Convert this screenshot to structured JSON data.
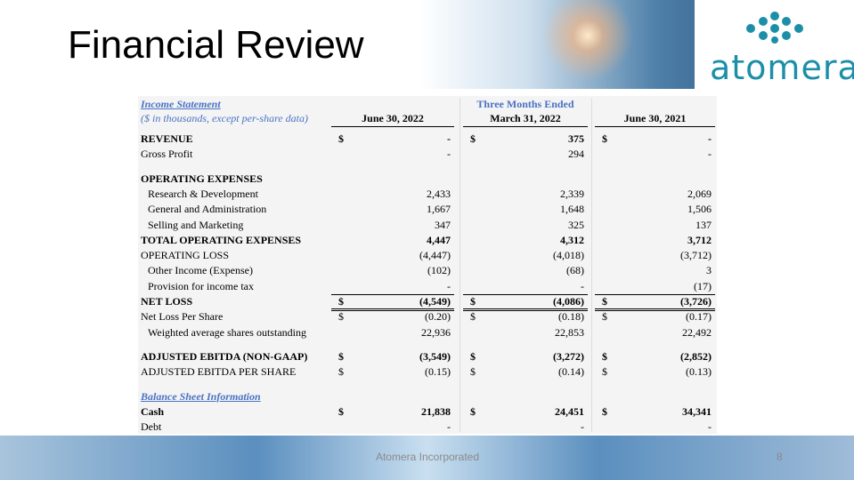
{
  "header": {
    "title": "Financial Review",
    "logo": "atomera"
  },
  "table": {
    "section_title": "Income Statement",
    "group_header": "Three Months Ended",
    "subtitle": "($ in thousands, except per-share data)",
    "columns": [
      "June 30, 2022",
      "March 31, 2022",
      "June 30, 2021"
    ],
    "rows": [
      {
        "label": "REVENUE",
        "bold": true,
        "currency": "$",
        "cells": [
          "-",
          "375",
          "-"
        ]
      },
      {
        "label": "Gross Profit",
        "cells": [
          "-",
          "294",
          "-"
        ]
      },
      {
        "label": "OPERATING EXPENSES",
        "bold": true,
        "spaced": true
      },
      {
        "label": "Research & Development",
        "indent": true,
        "cells": [
          "2,433",
          "2,339",
          "2,069"
        ]
      },
      {
        "label": "General and Administration",
        "indent": true,
        "cells": [
          "1,667",
          "1,648",
          "1,506"
        ]
      },
      {
        "label": "Selling and Marketing",
        "indent": true,
        "cells": [
          "347",
          "325",
          "137"
        ]
      },
      {
        "label": "TOTAL OPERATING EXPENSES",
        "bold": true,
        "cells": [
          "4,447",
          "4,312",
          "3,712"
        ]
      },
      {
        "label": "OPERATING LOSS",
        "cells": [
          "(4,447)",
          "(4,018)",
          "(3,712)"
        ]
      },
      {
        "label": "Other Income (Expense)",
        "indent": true,
        "cells": [
          "(102)",
          "(68)",
          "3"
        ]
      },
      {
        "label": "Provision for income tax",
        "indent": true,
        "cells": [
          "-",
          "-",
          "(17)"
        ]
      },
      {
        "label": "NET LOSS",
        "bold": true,
        "currency": "$",
        "cells": [
          "(4,549)",
          "(4,086)",
          "(3,726)"
        ],
        "rule": "double"
      },
      {
        "label": "Net Loss Per Share",
        "currency": "$",
        "cells": [
          "(0.20)",
          "(0.18)",
          "(0.17)"
        ]
      },
      {
        "label": "Weighted average shares outstanding",
        "indent": true,
        "cells": [
          "22,936",
          "22,853",
          "22,492"
        ]
      },
      {
        "label": "ADJUSTED EBITDA (NON-GAAP)",
        "bold": true,
        "spaced": true,
        "currency": "$",
        "cells": [
          "(3,549)",
          "(3,272)",
          "(2,852)"
        ]
      },
      {
        "label": "ADJUSTED EBITDA PER SHARE",
        "currency": "$",
        "cells": [
          "(0.15)",
          "(0.14)",
          "(0.13)"
        ]
      },
      {
        "label": "Balance Sheet Information",
        "section": true,
        "spaced": true
      },
      {
        "label": "Cash",
        "bold": true,
        "currency": "$",
        "cells": [
          "21,838",
          "24,451",
          "34,341"
        ]
      },
      {
        "label": "Debt",
        "cells": [
          "-",
          "-",
          "-"
        ]
      }
    ]
  },
  "footer": {
    "company": "Atomera Incorporated",
    "page": "8"
  }
}
